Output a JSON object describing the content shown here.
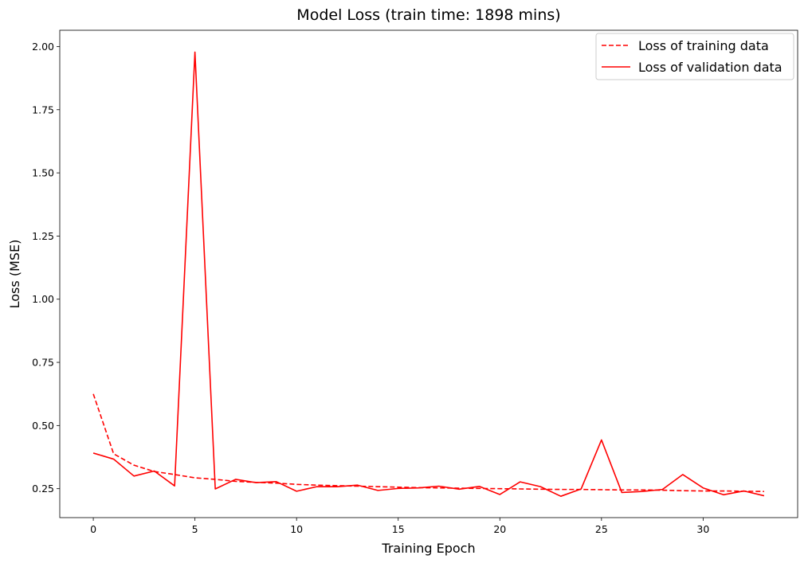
{
  "chart_data": {
    "type": "line",
    "title": "Model Loss (train time: 1898 mins)",
    "xlabel": "Training Epoch",
    "ylabel": "Loss (MSE)",
    "xlim": [
      -1.65,
      34.65
    ],
    "ylim": [
      0.1355,
      2.0645
    ],
    "xticks": [
      0,
      5,
      10,
      15,
      20,
      25,
      30
    ],
    "yticks": [
      0.25,
      0.5,
      0.75,
      1.0,
      1.25,
      1.5,
      1.75,
      2.0
    ],
    "ytick_labels": [
      "0.25",
      "0.50",
      "0.75",
      "1.00",
      "1.25",
      "1.50",
      "1.75",
      "2.00"
    ],
    "grid": false,
    "legend_position": "top-right",
    "x": [
      0,
      1,
      2,
      3,
      4,
      5,
      6,
      7,
      8,
      9,
      10,
      11,
      12,
      13,
      14,
      15,
      16,
      17,
      18,
      19,
      20,
      21,
      22,
      23,
      24,
      25,
      26,
      27,
      28,
      29,
      30,
      31,
      32,
      33
    ],
    "series": [
      {
        "name": "Loss of training data",
        "style": "dashed",
        "color": "#ff0000",
        "values": [
          0.625,
          0.388,
          0.343,
          0.318,
          0.306,
          0.293,
          0.287,
          0.279,
          0.275,
          0.272,
          0.267,
          0.264,
          0.262,
          0.26,
          0.258,
          0.256,
          0.254,
          0.253,
          0.252,
          0.251,
          0.25,
          0.249,
          0.248,
          0.247,
          0.247,
          0.246,
          0.245,
          0.245,
          0.244,
          0.242,
          0.241,
          0.241,
          0.24,
          0.239
        ]
      },
      {
        "name": "Loss of validation data",
        "style": "solid",
        "color": "#ff0000",
        "values": [
          0.391,
          0.367,
          0.3,
          0.32,
          0.261,
          1.978,
          0.249,
          0.287,
          0.274,
          0.278,
          0.24,
          0.258,
          0.258,
          0.264,
          0.243,
          0.251,
          0.253,
          0.26,
          0.248,
          0.259,
          0.227,
          0.277,
          0.258,
          0.22,
          0.249,
          0.443,
          0.235,
          0.239,
          0.247,
          0.306,
          0.253,
          0.226,
          0.241,
          0.222
        ]
      }
    ]
  }
}
